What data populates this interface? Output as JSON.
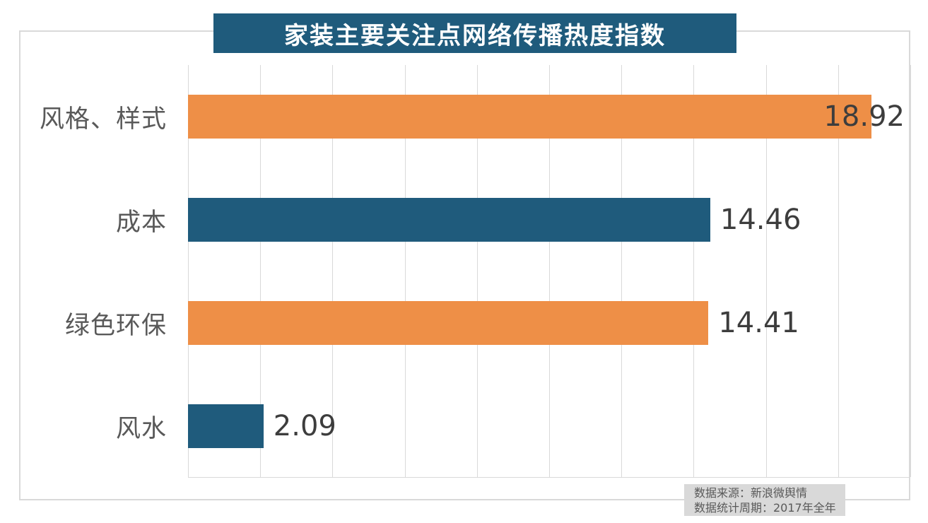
{
  "title": "家装主要关注点网络传播热度指数",
  "chart_data": {
    "type": "bar",
    "orientation": "horizontal",
    "title": "家装主要关注点网络传播热度指数",
    "categories": [
      "风格、样式",
      "成本",
      "绿色环保",
      "风水"
    ],
    "values": [
      18.92,
      14.46,
      14.41,
      2.09
    ],
    "value_labels": [
      "18.92",
      "14.46",
      "14.41",
      "2.09"
    ],
    "bar_colors": [
      "#ee8f47",
      "#1f5b7c",
      "#ee8f47",
      "#1f5b7c"
    ],
    "xlim": [
      0,
      20
    ],
    "gridline_step": 2,
    "grid": true,
    "legend": "none",
    "axis_tick_labels": "none"
  },
  "footer": {
    "source_line": "数据来源：新浪微舆情",
    "period_line": "数据统计周期：2017年全年"
  },
  "colors": {
    "title_bg": "#1f5b7c",
    "title_text": "#ffffff",
    "bar_orange": "#ee8f47",
    "bar_teal": "#1f5b7c",
    "gridline": "#d9d9d9",
    "frame_border": "#d9d9d9",
    "category_text": "#595959",
    "value_text": "#3d3d3d",
    "footer_bg": "#d9d9d9",
    "footer_text": "#595959"
  }
}
